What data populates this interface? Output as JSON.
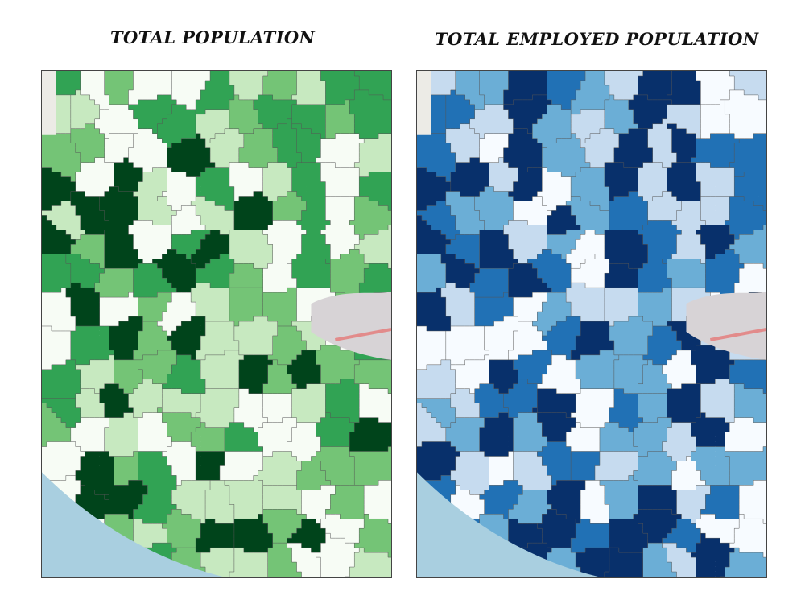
{
  "panels": [
    {
      "title": "TOTAL POPULATION",
      "palette": [
        "#f7fcf5",
        "#c7e9c0",
        "#74c476",
        "#31a354",
        "#00441b"
      ],
      "palette_name": "greens"
    },
    {
      "title": "TOTAL EMPLOYED POPULATION",
      "palette": [
        "#f7fbff",
        "#c6dbef",
        "#6baed6",
        "#2171b5",
        "#08306b"
      ],
      "palette_name": "blues"
    }
  ],
  "colors": {
    "sea": "#a9cfe0",
    "basemap_land": "#ecebe6",
    "basemap_urban": "#d7d3d6",
    "basemap_road": "#e28b8b",
    "boundary": "#555555"
  },
  "icons": [
    "choropleth-map"
  ]
}
